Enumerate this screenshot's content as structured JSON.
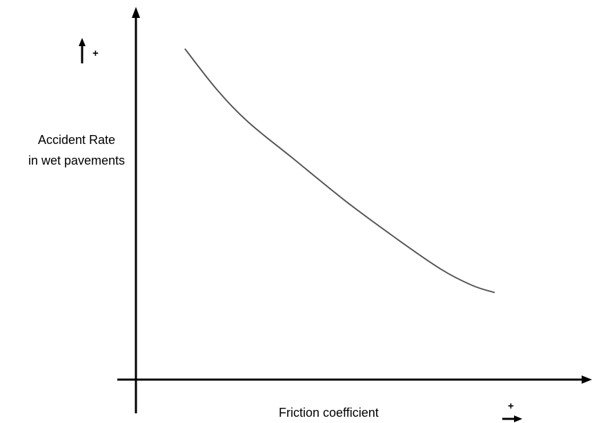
{
  "chart_data": {
    "type": "line",
    "title": "",
    "xlabel": "Friction coefficient",
    "ylabel_lines": [
      "Accident Rate",
      "in wet pavements"
    ],
    "ylabel": "Accident Rate in wet pavements",
    "axis_direction_marker": "+",
    "ticks": "none",
    "grid": false,
    "legend": "none",
    "trend": "decreasing",
    "xlim": [
      0,
      10
    ],
    "ylim": [
      0,
      10
    ],
    "series": [
      {
        "x": [
          1.1,
          1.8,
          2.5,
          3.5,
          4.7,
          5.8,
          6.8,
          7.5,
          8.0
        ],
        "y": [
          9.1,
          8.0,
          7.1,
          6.1,
          4.9,
          3.9,
          3.05,
          2.6,
          2.4
        ]
      }
    ],
    "colors": {
      "curve": "#555555",
      "axes": "#000000"
    }
  }
}
